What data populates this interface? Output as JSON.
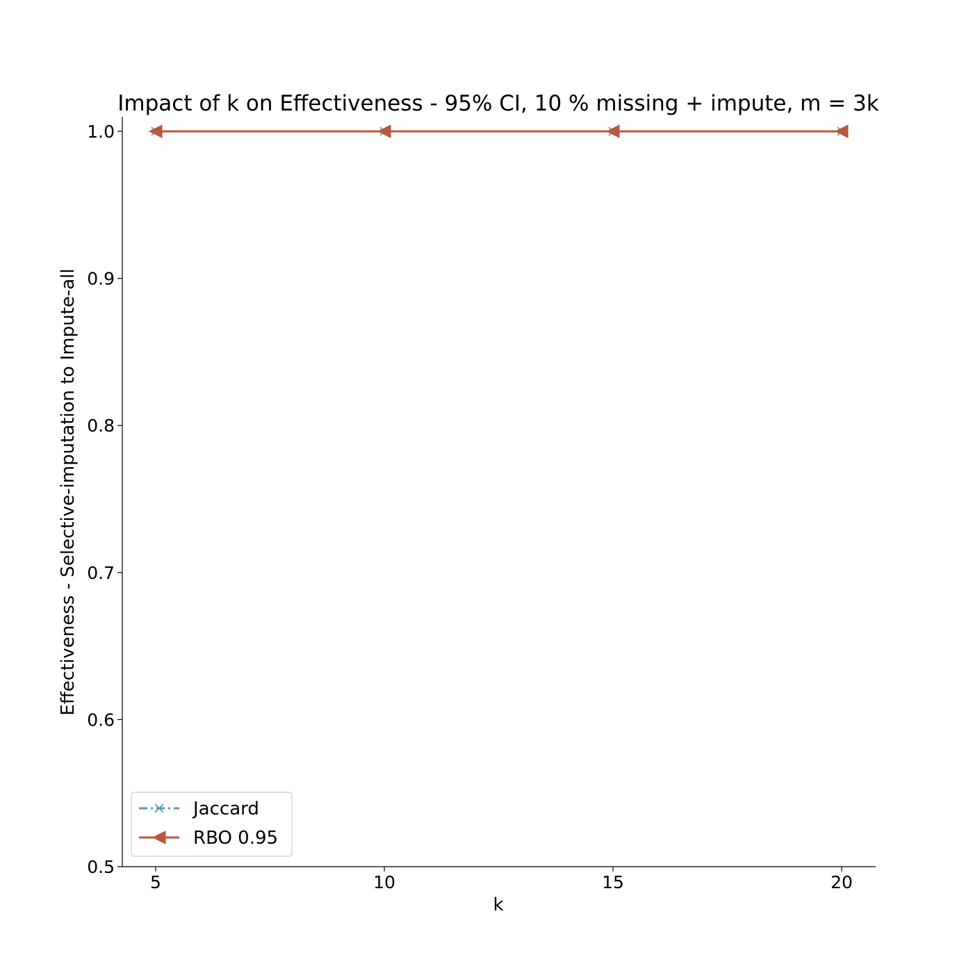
{
  "chart_data": {
    "type": "line",
    "title": "Impact of k on Effectiveness - 95% CI, 10 % missing + impute, m = 3k",
    "xlabel": "k",
    "ylabel": "Effectiveness - Selective-imputation to Impute-all",
    "x": [
      5,
      10,
      15,
      20
    ],
    "xticks": [
      "5",
      "10",
      "15",
      "20"
    ],
    "yticks": [
      "0.5",
      "0.6",
      "0.7",
      "0.8",
      "0.9",
      "1.0"
    ],
    "ytick_values": [
      0.5,
      0.6,
      0.7,
      0.8,
      0.9,
      1.0
    ],
    "ylim": [
      0.5,
      1.0
    ],
    "grid": false,
    "legend_position": "lower-left",
    "series": [
      {
        "name": "Jaccard",
        "values": [
          1.0,
          1.0,
          1.0,
          1.0
        ],
        "color": "#5b9aad",
        "marker": "x",
        "linestyle": "dashdot"
      },
      {
        "name": "RBO 0.95",
        "values": [
          1.0,
          1.0,
          1.0,
          1.0
        ],
        "color": "#b9583a",
        "marker": "triangle-left",
        "linestyle": "solid"
      }
    ]
  }
}
